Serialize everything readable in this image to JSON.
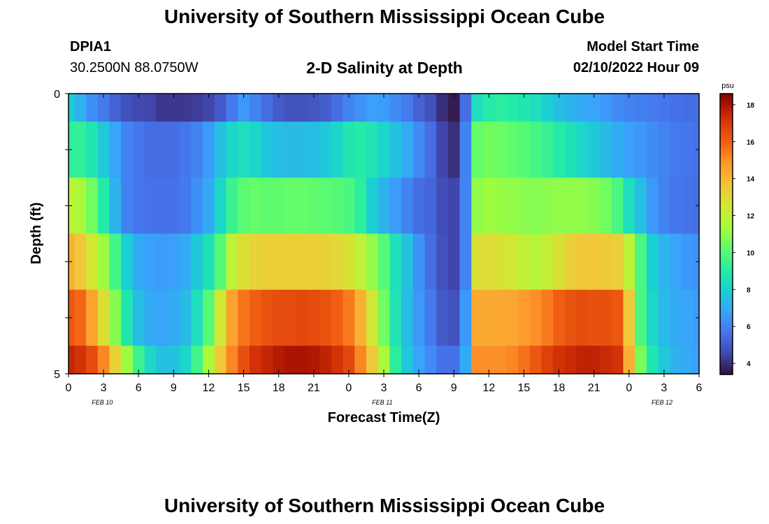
{
  "header": {
    "title": "University of Southern Mississippi Ocean Cube",
    "station_name": "DPIA1",
    "station_coords": "30.2500N  88.0750W",
    "plot_title": "2-D Salinity at Depth",
    "model_label": "Model Start Time",
    "model_time": "02/10/2022 Hour 09"
  },
  "footer": {
    "title": "University of Southern Mississippi Ocean Cube"
  },
  "chart_data": {
    "type": "heatmap",
    "title": "2-D Salinity at Depth",
    "xlabel": "Forecast Time(Z)",
    "ylabel": "Depth (ft)",
    "x_hours_range": [
      0,
      54
    ],
    "x_tick_labels": [
      "0",
      "3",
      "6",
      "9",
      "12",
      "15",
      "18",
      "21",
      "0",
      "3",
      "6",
      "9",
      "12",
      "15",
      "18",
      "21",
      "0",
      "3",
      "6"
    ],
    "date_labels": [
      "FEB 10",
      "FEB 11",
      "FEB 12"
    ],
    "y_tick_labels": [
      "0",
      "5"
    ],
    "y_range": [
      0,
      5
    ],
    "colorbar": {
      "unit": "psu",
      "range": [
        3.4,
        18.6
      ],
      "tick_labels": [
        "4",
        "6",
        "8",
        "10",
        "12",
        "14",
        "16",
        "18"
      ]
    },
    "layer_hours": [
      0,
      1,
      2,
      3,
      4,
      5,
      6,
      7,
      8,
      9,
      10,
      11,
      12,
      13,
      14,
      15,
      16,
      17,
      18,
      19,
      20,
      21,
      22,
      23,
      24,
      25,
      26,
      27,
      28,
      29,
      30,
      31,
      32,
      33,
      34,
      35,
      36,
      37,
      38,
      39,
      40,
      41,
      42,
      43,
      44,
      45,
      46,
      47,
      48,
      49,
      50,
      51,
      52,
      53,
      54
    ],
    "layers": [
      {
        "depth_from": 0,
        "depth_to": 0.5,
        "values": [
          8,
          7.2,
          6.3,
          5.8,
          5.2,
          4.8,
          4.6,
          4.5,
          4.2,
          4.2,
          4.2,
          4.3,
          4.5,
          5,
          5.8,
          6.5,
          6,
          5.5,
          5,
          4.8,
          4.8,
          4.9,
          5.1,
          5.5,
          6,
          6.4,
          6.7,
          6.6,
          6.2,
          5.8,
          5.2,
          4.8,
          4,
          3.6,
          5.5,
          8.5,
          9,
          9.2,
          9,
          8.8,
          8.5,
          8,
          7.5,
          7.2,
          7,
          6.8,
          6.5,
          6.2,
          6,
          5.9,
          5.8,
          5.7,
          5.6,
          5.5,
          5.5
        ]
      },
      {
        "depth_from": 0.5,
        "depth_to": 1.5,
        "values": [
          9.2,
          9.3,
          8.8,
          7.8,
          6.8,
          6,
          5.7,
          5.5,
          5.5,
          5.5,
          5.7,
          6,
          6.6,
          7.5,
          8.2,
          8.5,
          8.2,
          7.7,
          7.5,
          7.4,
          7.4,
          7.5,
          7.8,
          8.2,
          8.8,
          9,
          8.7,
          8.2,
          7.6,
          7,
          6.2,
          5.5,
          4.5,
          4,
          6,
          10.3,
          10.5,
          10.4,
          10.2,
          10,
          9.7,
          9.4,
          9,
          8.6,
          8.2,
          7.8,
          7.4,
          7,
          6.7,
          6.5,
          6.2,
          6,
          5.8,
          5.7,
          5.6
        ]
      },
      {
        "depth_from": 1.5,
        "depth_to": 2.5,
        "values": [
          12,
          11.5,
          10.5,
          9,
          7.2,
          6,
          5.7,
          5.6,
          5.6,
          5.6,
          5.8,
          6.3,
          7,
          8.2,
          9.5,
          10.1,
          10.3,
          10.2,
          10.2,
          10.3,
          10.3,
          10.2,
          10.1,
          10,
          9.8,
          9.2,
          8,
          7.2,
          6.6,
          6,
          5.5,
          5.3,
          4.7,
          4.5,
          6,
          11,
          11.2,
          11.1,
          11,
          10.9,
          10.8,
          10.9,
          11,
          11,
          11,
          10.8,
          10.5,
          9.8,
          8.5,
          7.5,
          6.5,
          6,
          5.7,
          5.6,
          5.5
        ]
      },
      {
        "depth_from": 2.5,
        "depth_to": 3.5,
        "values": [
          14.2,
          13.6,
          12.5,
          11.2,
          9.6,
          8,
          7,
          6.7,
          6.6,
          6.7,
          7,
          7.8,
          8.6,
          10,
          12,
          12.8,
          13.2,
          13.3,
          13.3,
          13.3,
          13.3,
          13.3,
          13.2,
          13,
          12.7,
          12,
          11,
          10,
          8.6,
          7.6,
          6.4,
          5.5,
          4.8,
          4.5,
          6,
          12.8,
          12.9,
          12.7,
          12.5,
          12,
          11.8,
          12.2,
          12.8,
          13.3,
          13.5,
          13.6,
          13.5,
          13.3,
          12,
          9.8,
          8,
          7.2,
          6.8,
          6.5,
          6.4
        ]
      },
      {
        "depth_from": 3.5,
        "depth_to": 4.5,
        "values": [
          16.2,
          15.8,
          14.6,
          12.8,
          10.8,
          8.8,
          7.5,
          7,
          6.8,
          7,
          7.4,
          8.5,
          10,
          12.5,
          14.6,
          15.5,
          16,
          16.3,
          16.5,
          16.5,
          16.6,
          16.5,
          16.3,
          16,
          15.4,
          14.2,
          12.5,
          10.5,
          8.7,
          7.5,
          6.5,
          5.8,
          5,
          4.8,
          6.5,
          14.4,
          14.4,
          14.4,
          14.5,
          14.8,
          15,
          15.4,
          16,
          16.3,
          16.5,
          16.4,
          16.4,
          16.2,
          13.5,
          9.8,
          8.2,
          7.4,
          7,
          6.8,
          6.6
        ]
      },
      {
        "depth_from": 4.5,
        "depth_to": 5,
        "values": [
          17.5,
          17.2,
          16.5,
          15.2,
          13.2,
          11.2,
          9.5,
          8.3,
          7.6,
          7.6,
          8.2,
          9.6,
          11.4,
          13.5,
          15.2,
          16.4,
          17.2,
          17.5,
          17.8,
          18,
          18,
          17.9,
          17.6,
          17.2,
          16.6,
          15.2,
          13.5,
          11.5,
          9.2,
          7.8,
          6.8,
          6.2,
          5.6,
          5.6,
          7,
          15,
          15,
          15,
          15.2,
          15.6,
          16.2,
          16.8,
          17.2,
          17.4,
          17.6,
          17.6,
          17.4,
          17.2,
          14.2,
          10.6,
          8.8,
          7.8,
          7.2,
          6.9,
          6.7
        ]
      }
    ]
  }
}
